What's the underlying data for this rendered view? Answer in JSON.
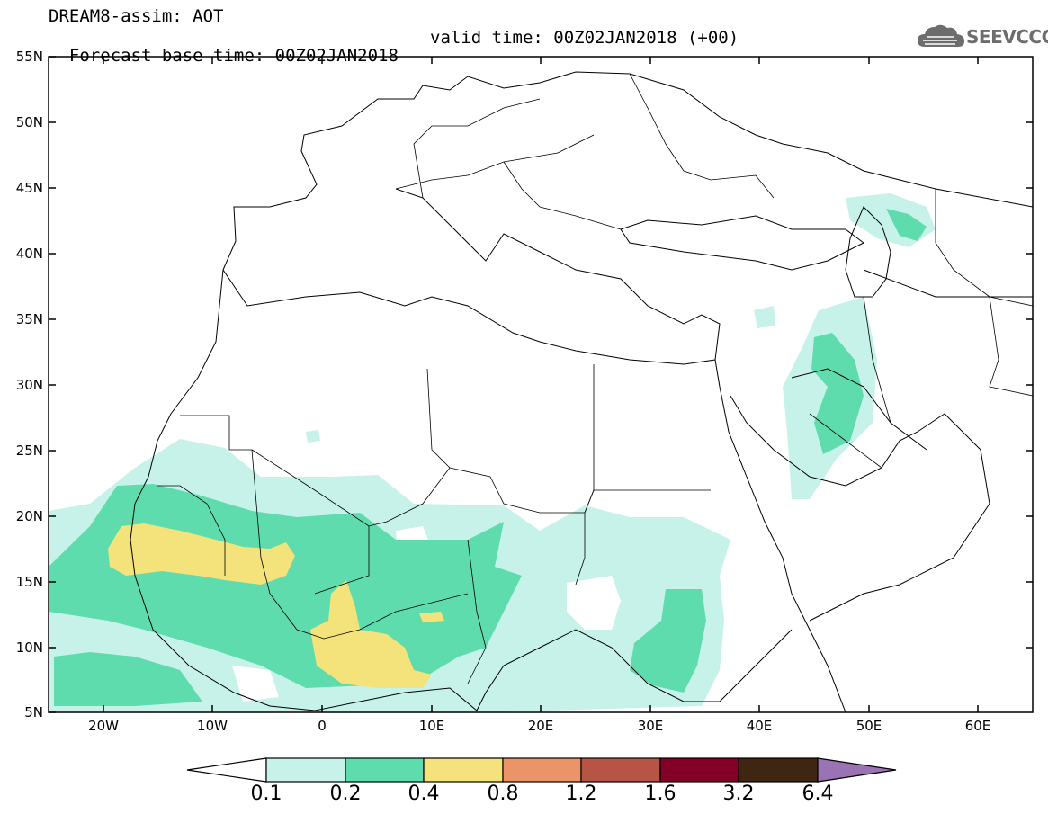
{
  "header": {
    "title_line1": "DREAM8-assim: AOT",
    "base_time": "Forecast base time: 00Z02JAN2018",
    "valid_time": "valid time: 00Z02JAN2018 (+00)"
  },
  "logo": {
    "text": "SEEVCCC",
    "icon": "cloud-icon"
  },
  "map": {
    "lat_labels": [
      "55N",
      "50N",
      "45N",
      "40N",
      "35N",
      "30N",
      "25N",
      "20N",
      "15N",
      "10N",
      "5N"
    ],
    "lat_values": [
      55,
      50,
      45,
      40,
      35,
      30,
      25,
      20,
      15,
      10,
      5
    ],
    "lon_labels": [
      "20W",
      "10W",
      "0",
      "10E",
      "20E",
      "30E",
      "40E",
      "50E",
      "60E"
    ],
    "lon_values": [
      -20,
      -10,
      0,
      10,
      20,
      30,
      40,
      50,
      60
    ],
    "extent": {
      "lon_min": -25,
      "lon_max": 65,
      "lat_min": 5,
      "lat_max": 55
    },
    "field": "AOT"
  },
  "colorbar": {
    "labels": [
      "0.1",
      "0.2",
      "0.4",
      "0.8",
      "1.2",
      "1.6",
      "3.2",
      "6.4"
    ],
    "colors": [
      "#ffffff",
      "#c6f2ea",
      "#5fdcae",
      "#f4e37a",
      "#eb9468",
      "#b65446",
      "#840026",
      "#3f2613",
      "#9a73b5"
    ]
  },
  "colors": {
    "c1": "#c6f2ea",
    "c2": "#5fdcae",
    "c3": "#f4e37a"
  }
}
